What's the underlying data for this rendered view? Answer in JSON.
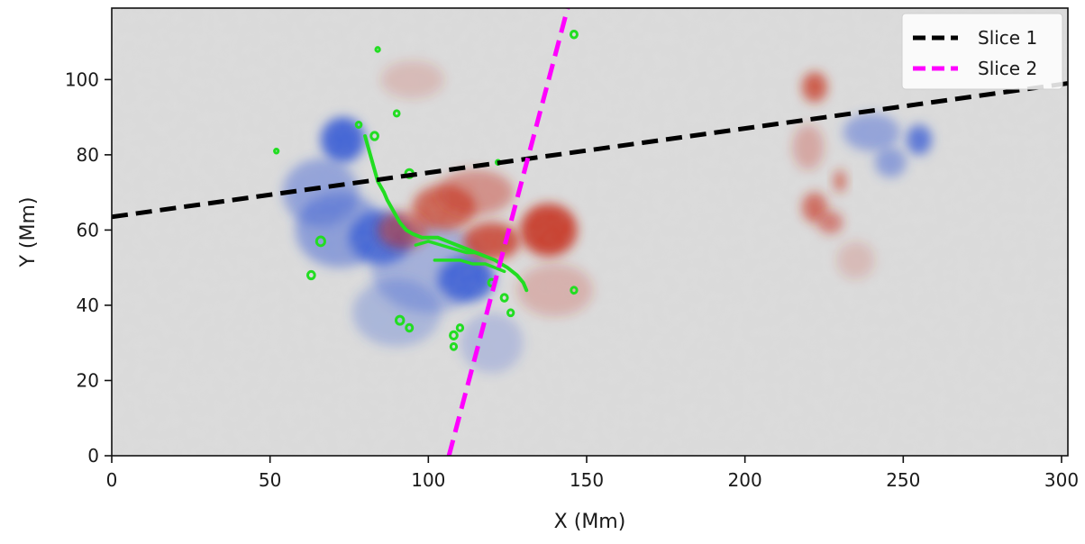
{
  "chart_data": {
    "type": "heatmap",
    "title": "",
    "xlabel": "X (Mm)",
    "ylabel": "Y (Mm)",
    "xlim": [
      0,
      302
    ],
    "ylim": [
      0,
      119
    ],
    "xticks": [
      0,
      50,
      100,
      150,
      200,
      250,
      300
    ],
    "yticks": [
      0,
      20,
      40,
      60,
      80,
      100
    ],
    "grid": false,
    "legend": {
      "placement": "top-right"
    },
    "colormap": {
      "name": "diverging blue-white-red",
      "negative": "#3b5fd6",
      "neutral": "#dcdcdc",
      "positive": "#c8321e"
    },
    "magnetic_patches": [
      {
        "polarity": "negative",
        "x": 73,
        "y": 84,
        "rx": 7,
        "ry": 6,
        "strength": 0.95
      },
      {
        "polarity": "negative",
        "x": 66,
        "y": 70,
        "rx": 12,
        "ry": 9,
        "strength": 0.45
      },
      {
        "polarity": "negative",
        "x": 85,
        "y": 58,
        "rx": 10,
        "ry": 7,
        "strength": 0.85
      },
      {
        "polarity": "negative",
        "x": 72,
        "y": 60,
        "rx": 14,
        "ry": 10,
        "strength": 0.5
      },
      {
        "polarity": "negative",
        "x": 112,
        "y": 47,
        "rx": 9,
        "ry": 6,
        "strength": 0.9
      },
      {
        "polarity": "negative",
        "x": 100,
        "y": 50,
        "rx": 18,
        "ry": 12,
        "strength": 0.35
      },
      {
        "polarity": "negative",
        "x": 90,
        "y": 38,
        "rx": 14,
        "ry": 9,
        "strength": 0.3
      },
      {
        "polarity": "negative",
        "x": 120,
        "y": 30,
        "rx": 10,
        "ry": 8,
        "strength": 0.25
      },
      {
        "polarity": "negative",
        "x": 255,
        "y": 84,
        "rx": 4,
        "ry": 4,
        "strength": 0.8
      },
      {
        "polarity": "negative",
        "x": 240,
        "y": 86,
        "rx": 9,
        "ry": 5,
        "strength": 0.45
      },
      {
        "polarity": "negative",
        "x": 246,
        "y": 78,
        "rx": 5,
        "ry": 4,
        "strength": 0.5
      },
      {
        "polarity": "positive",
        "x": 138,
        "y": 60,
        "rx": 9,
        "ry": 7,
        "strength": 0.9
      },
      {
        "polarity": "positive",
        "x": 120,
        "y": 57,
        "rx": 9,
        "ry": 5,
        "strength": 0.8
      },
      {
        "polarity": "positive",
        "x": 105,
        "y": 66,
        "rx": 10,
        "ry": 6,
        "strength": 0.7
      },
      {
        "polarity": "positive",
        "x": 92,
        "y": 60,
        "rx": 8,
        "ry": 5,
        "strength": 0.55
      },
      {
        "polarity": "positive",
        "x": 115,
        "y": 70,
        "rx": 12,
        "ry": 6,
        "strength": 0.45
      },
      {
        "polarity": "positive",
        "x": 140,
        "y": 44,
        "rx": 12,
        "ry": 7,
        "strength": 0.25
      },
      {
        "polarity": "positive",
        "x": 95,
        "y": 100,
        "rx": 10,
        "ry": 5,
        "strength": 0.2
      },
      {
        "polarity": "positive",
        "x": 222,
        "y": 98,
        "rx": 4,
        "ry": 4,
        "strength": 0.75
      },
      {
        "polarity": "positive",
        "x": 222,
        "y": 66,
        "rx": 4,
        "ry": 4,
        "strength": 0.65
      },
      {
        "polarity": "positive",
        "x": 227,
        "y": 62,
        "rx": 4,
        "ry": 3,
        "strength": 0.55
      },
      {
        "polarity": "positive",
        "x": 230,
        "y": 73,
        "rx": 2,
        "ry": 3,
        "strength": 0.6
      },
      {
        "polarity": "positive",
        "x": 220,
        "y": 82,
        "rx": 5,
        "ry": 6,
        "strength": 0.3
      },
      {
        "polarity": "positive",
        "x": 235,
        "y": 52,
        "rx": 6,
        "ry": 5,
        "strength": 0.2
      }
    ],
    "series": [
      {
        "name": "Slice 1",
        "style": "dashed",
        "color": "#000000",
        "x": [
          0,
          302
        ],
        "y": [
          63.5,
          99
        ]
      },
      {
        "name": "Slice 2",
        "style": "dashed",
        "color": "#ff00ff",
        "x": [
          106.5,
          144
        ],
        "y": [
          0,
          119
        ]
      }
    ],
    "polarity_inversion_line": {
      "color": "#22dd22",
      "x": [
        80,
        81,
        82,
        83,
        84,
        86,
        87,
        89,
        91,
        93,
        95,
        98,
        101,
        103,
        106,
        109,
        112,
        115,
        118,
        121,
        125,
        128,
        130,
        131
      ],
      "y": [
        85,
        82,
        79,
        76,
        73,
        70,
        68,
        65,
        62,
        60,
        59,
        58,
        58,
        58,
        57,
        56,
        55,
        54,
        53,
        52,
        50,
        48,
        46,
        44
      ]
    },
    "pil_branches": [
      {
        "x": [
          96,
          100,
          104,
          108,
          112,
          115,
          118
        ],
        "y": [
          56,
          57,
          56,
          55,
          54,
          54,
          53
        ]
      },
      {
        "x": [
          102,
          106,
          110,
          114,
          118,
          121,
          124
        ],
        "y": [
          52,
          52,
          52,
          51,
          51,
          50,
          49
        ]
      }
    ],
    "pil_blobs": [
      {
        "x": 83,
        "y": 85,
        "r": 1.1
      },
      {
        "x": 78,
        "y": 88,
        "r": 0.8
      },
      {
        "x": 90,
        "y": 91,
        "r": 0.8
      },
      {
        "x": 94,
        "y": 75,
        "r": 1.2
      },
      {
        "x": 66,
        "y": 57,
        "r": 1.3
      },
      {
        "x": 63,
        "y": 48,
        "r": 1.1
      },
      {
        "x": 91,
        "y": 36,
        "r": 1.2
      },
      {
        "x": 94,
        "y": 34,
        "r": 1.0
      },
      {
        "x": 108,
        "y": 32,
        "r": 1.1
      },
      {
        "x": 110,
        "y": 34,
        "r": 0.9
      },
      {
        "x": 108,
        "y": 29,
        "r": 0.9
      },
      {
        "x": 120,
        "y": 46,
        "r": 1.0
      },
      {
        "x": 124,
        "y": 42,
        "r": 1.0
      },
      {
        "x": 126,
        "y": 38,
        "r": 0.9
      },
      {
        "x": 146,
        "y": 44,
        "r": 0.9
      },
      {
        "x": 146,
        "y": 112,
        "r": 1.0
      },
      {
        "x": 84,
        "y": 108,
        "r": 0.6
      },
      {
        "x": 52,
        "y": 81,
        "r": 0.6
      },
      {
        "x": 122,
        "y": 78,
        "r": 0.6
      }
    ]
  }
}
